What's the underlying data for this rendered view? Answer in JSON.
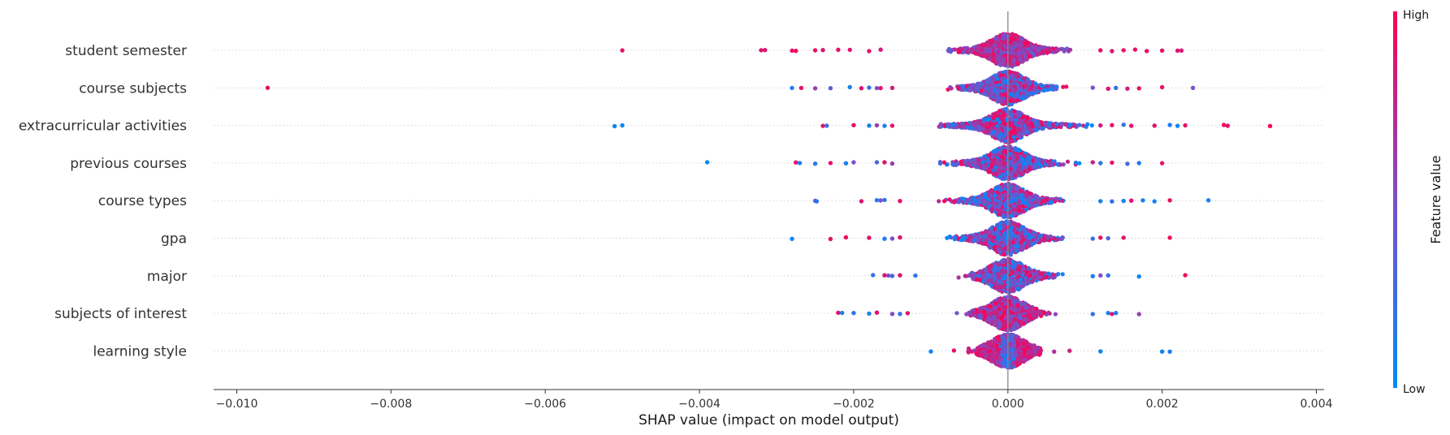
{
  "chart_data": {
    "type": "scatter",
    "xlabel": "SHAP value (impact on model output)",
    "xlim": [
      -0.0103,
      0.0041
    ],
    "x_ticks": [
      -0.01,
      -0.008,
      -0.006,
      -0.004,
      -0.002,
      0.0,
      0.002,
      0.004
    ],
    "x_tick_labels": [
      "−0.010",
      "−0.008",
      "−0.006",
      "−0.004",
      "−0.002",
      "0.000",
      "0.002",
      "0.004"
    ],
    "grid": "horizontal dotted",
    "colorbar": {
      "title": "Feature value",
      "high_label": "High",
      "low_label": "Low",
      "low_color": "#008bfb",
      "high_color": "#ff0052"
    },
    "features": [
      {
        "name": "student semester",
        "spread": 0.00045,
        "bias": "high",
        "points": [
          [
            -0.005,
            0.9
          ],
          [
            -0.0032,
            0.9
          ],
          [
            -0.00315,
            0.85
          ],
          [
            -0.0028,
            0.9
          ],
          [
            -0.00275,
            0.95
          ],
          [
            -0.0025,
            0.9
          ],
          [
            -0.0024,
            0.85
          ],
          [
            -0.0022,
            0.9
          ],
          [
            -0.00205,
            0.9
          ],
          [
            -0.0018,
            0.9
          ],
          [
            -0.00165,
            0.85
          ],
          [
            0.0012,
            0.9
          ],
          [
            0.00135,
            0.85
          ],
          [
            0.0015,
            0.9
          ],
          [
            0.00165,
            0.9
          ],
          [
            0.0018,
            0.95
          ],
          [
            0.002,
            0.9
          ],
          [
            0.0022,
            0.9
          ],
          [
            0.00225,
            0.85
          ]
        ]
      },
      {
        "name": "course subjects",
        "spread": 0.00045,
        "bias": "mixed",
        "points": [
          [
            -0.0096,
            0.9
          ],
          [
            -0.0028,
            0.1
          ],
          [
            -0.00268,
            0.9
          ],
          [
            -0.0025,
            0.6
          ],
          [
            -0.0023,
            0.4
          ],
          [
            -0.00205,
            0.1
          ],
          [
            -0.0019,
            0.9
          ],
          [
            -0.0018,
            0.2
          ],
          [
            -0.0017,
            0.5
          ],
          [
            -0.00165,
            0.9
          ],
          [
            -0.0015,
            0.8
          ],
          [
            0.0011,
            0.5
          ],
          [
            0.0013,
            0.9
          ],
          [
            0.0014,
            0.2
          ],
          [
            0.00155,
            0.8
          ],
          [
            0.0017,
            0.9
          ],
          [
            0.002,
            0.9
          ],
          [
            0.0024,
            0.5
          ]
        ]
      },
      {
        "name": "extracurricular activities",
        "spread": 0.0006,
        "bias": "mixed",
        "points": [
          [
            -0.0051,
            0.05
          ],
          [
            -0.005,
            0.05
          ],
          [
            -0.0024,
            0.9
          ],
          [
            -0.00235,
            0.2
          ],
          [
            -0.002,
            0.9
          ],
          [
            -0.0018,
            0.1
          ],
          [
            -0.0017,
            0.6
          ],
          [
            -0.0016,
            0.1
          ],
          [
            -0.0015,
            0.9
          ],
          [
            0.0012,
            0.8
          ],
          [
            0.00135,
            0.9
          ],
          [
            0.0015,
            0.2
          ],
          [
            0.0016,
            0.9
          ],
          [
            0.0019,
            0.9
          ],
          [
            0.0021,
            0.1
          ],
          [
            0.0022,
            0.05
          ],
          [
            0.0023,
            0.9
          ],
          [
            0.0028,
            0.95
          ],
          [
            0.00285,
            0.9
          ],
          [
            0.0034,
            0.95
          ]
        ]
      },
      {
        "name": "previous courses",
        "spread": 0.0005,
        "bias": "mixed",
        "points": [
          [
            -0.0039,
            0.05
          ],
          [
            -0.00275,
            0.9
          ],
          [
            -0.0027,
            0.1
          ],
          [
            -0.0025,
            0.15
          ],
          [
            -0.0023,
            0.9
          ],
          [
            -0.0021,
            0.1
          ],
          [
            -0.002,
            0.5
          ],
          [
            -0.0017,
            0.3
          ],
          [
            -0.0016,
            0.9
          ],
          [
            -0.0015,
            0.6
          ],
          [
            0.0011,
            0.8
          ],
          [
            0.0012,
            0.2
          ],
          [
            0.00135,
            0.9
          ],
          [
            0.00155,
            0.3
          ],
          [
            0.0017,
            0.15
          ],
          [
            0.002,
            0.9
          ]
        ]
      },
      {
        "name": "course types",
        "spread": 0.0005,
        "bias": "mixed",
        "points": [
          [
            -0.0025,
            0.3
          ],
          [
            -0.00248,
            0.2
          ],
          [
            -0.0019,
            0.9
          ],
          [
            -0.0017,
            0.1
          ],
          [
            -0.00165,
            0.5
          ],
          [
            -0.0016,
            0.2
          ],
          [
            -0.0014,
            0.9
          ],
          [
            0.0012,
            0.1
          ],
          [
            0.00135,
            0.2
          ],
          [
            0.0015,
            0.1
          ],
          [
            0.0016,
            0.9
          ],
          [
            0.00175,
            0.1
          ],
          [
            0.0019,
            0.05
          ],
          [
            0.0021,
            0.9
          ],
          [
            0.0026,
            0.1
          ]
        ]
      },
      {
        "name": "gpa",
        "spread": 0.00045,
        "bias": "mixed",
        "points": [
          [
            -0.0028,
            0.05
          ],
          [
            -0.0023,
            0.9
          ],
          [
            -0.0021,
            0.95
          ],
          [
            -0.0018,
            0.9
          ],
          [
            -0.0016,
            0.1
          ],
          [
            -0.0015,
            0.5
          ],
          [
            -0.0014,
            0.9
          ],
          [
            0.0011,
            0.2
          ],
          [
            0.0012,
            0.9
          ],
          [
            0.0013,
            0.3
          ],
          [
            0.0015,
            0.9
          ],
          [
            0.0021,
            0.95
          ]
        ]
      },
      {
        "name": "major",
        "spread": 0.0004,
        "bias": "mixed",
        "points": [
          [
            -0.00175,
            0.2
          ],
          [
            -0.0016,
            0.9
          ],
          [
            -0.00155,
            0.5
          ],
          [
            -0.0015,
            0.3
          ],
          [
            -0.0014,
            0.9
          ],
          [
            -0.0012,
            0.2
          ],
          [
            0.0011,
            0.1
          ],
          [
            0.0012,
            0.5
          ],
          [
            0.0013,
            0.2
          ],
          [
            0.0017,
            0.05
          ],
          [
            0.0023,
            0.95
          ]
        ]
      },
      {
        "name": "subjects of interest",
        "spread": 0.00035,
        "bias": "high",
        "points": [
          [
            -0.0022,
            0.9
          ],
          [
            -0.00215,
            0.1
          ],
          [
            -0.002,
            0.2
          ],
          [
            -0.0018,
            0.1
          ],
          [
            -0.0017,
            0.9
          ],
          [
            -0.0015,
            0.5
          ],
          [
            -0.0014,
            0.2
          ],
          [
            -0.0013,
            0.9
          ],
          [
            0.0011,
            0.2
          ],
          [
            0.0013,
            0.1
          ],
          [
            0.00135,
            0.9
          ],
          [
            0.0014,
            0.1
          ],
          [
            0.0017,
            0.6
          ]
        ]
      },
      {
        "name": "learning style",
        "spread": 0.0003,
        "bias": "low",
        "points": [
          [
            -0.001,
            0.05
          ],
          [
            -0.0007,
            0.9
          ],
          [
            -0.0005,
            0.8
          ],
          [
            0.0006,
            0.7
          ],
          [
            0.0008,
            0.8
          ],
          [
            0.0012,
            0.05
          ],
          [
            0.002,
            0.05
          ],
          [
            0.0021,
            0.1
          ]
        ]
      }
    ]
  }
}
